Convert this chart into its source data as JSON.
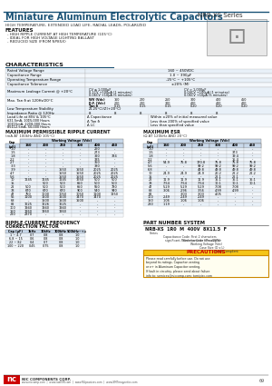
{
  "title": "Miniature Aluminum Electrolytic Capacitors",
  "series": "NRB-XS Series",
  "subtitle": "HIGH TEMPERATURE, EXTENDED LOAD LIFE, RADIAL LEADS, POLARIZED",
  "features_title": "FEATURES",
  "features": [
    "HIGH RIPPLE CURRENT AT HIGH TEMPERATURE (105°C)",
    "IDEAL FOR HIGH VOLTAGE LIGHTING BALLAST",
    "REDUCED SIZE (FROM NP85X)"
  ],
  "char_title": "CHARACTERISTICS",
  "ripple_title": "MAXIMUM PERMISSIBLE RIPPLE CURRENT",
  "ripple_subtitle": "(mA AT 100kHz AND 105°C)",
  "esr_title": "MAXIMUM ESR",
  "esr_subtitle": "(Ω AT 120kHz AND 20°C)",
  "ripple_data": [
    [
      "1.0",
      "-",
      "-",
      "-",
      "-",
      "260",
      "-"
    ],
    [
      "1.5",
      "-",
      "-",
      "-",
      "-",
      "273",
      "-"
    ],
    [
      "1.8",
      "-",
      "-",
      "-",
      "-",
      "320",
      "334"
    ],
    [
      "2.2",
      "-",
      "-",
      "-",
      "-",
      "335",
      "-"
    ],
    [
      "2.7",
      "-",
      "-",
      "-",
      "-",
      "350",
      "-"
    ],
    [
      "3.3",
      "-",
      "-",
      "-",
      "-",
      "380",
      "-"
    ],
    [
      "3.9",
      "-",
      "-",
      "1550",
      "1550",
      "2025",
      "2025"
    ],
    [
      "4.7",
      "-",
      "-",
      "1550",
      "1550",
      "2025",
      "2025"
    ],
    [
      "5.6",
      "-",
      "-",
      "1550",
      "1550",
      "2025",
      "2025"
    ],
    [
      "10",
      "1245",
      "1245",
      "1245",
      "1650",
      "500",
      "500"
    ],
    [
      "15",
      "-",
      "500",
      "500",
      "650",
      "500",
      "500"
    ],
    [
      "22",
      "500",
      "500",
      "500",
      "650",
      "550",
      "780"
    ],
    [
      "33",
      "670",
      "670",
      "670",
      "900",
      "540",
      "940"
    ],
    [
      "47",
      "750",
      "1000",
      "1050",
      "1050",
      "1100",
      "1250"
    ],
    [
      "56",
      "1100",
      "1500",
      "1500",
      "1470",
      "1470",
      "-"
    ],
    [
      "68",
      "-",
      "1500",
      "1500",
      "1500",
      "-",
      "-"
    ],
    [
      "82",
      "1625",
      "1626",
      "1625",
      "-",
      "-",
      "-"
    ],
    [
      "100",
      "1940",
      "1940",
      "1940",
      "-",
      "-",
      "-"
    ],
    [
      "150",
      "1960",
      "1960",
      "1960",
      "-",
      "-",
      "-"
    ],
    [
      "220",
      "2370",
      "-",
      "-",
      "-",
      "-",
      "-"
    ]
  ],
  "esr_data": [
    [
      "1.0",
      "-",
      "-",
      "-",
      "-",
      "-",
      "-"
    ],
    [
      "1.5",
      "-",
      "-",
      "-",
      "-",
      "373",
      "-"
    ],
    [
      "1.8",
      "-",
      "-",
      "-",
      "-",
      "19.4",
      "-"
    ],
    [
      "2.2",
      "-",
      "-",
      "-",
      "-",
      "15.4",
      "-"
    ],
    [
      "4.7",
      "54.9",
      "75.8",
      "170.8",
      "75.8",
      "75.8",
      "75.8"
    ],
    [
      "5.6",
      "-",
      "-",
      "99.2",
      "99.2",
      "99.2",
      "99.2"
    ],
    [
      "6.8",
      "-",
      "-",
      "49.8",
      "49.8",
      "49.8",
      "49.8"
    ],
    [
      "10",
      "24.9",
      "24.9",
      "24.9",
      "20.2",
      "22.2",
      "22.2"
    ],
    [
      "15",
      "-",
      "-",
      "-",
      "22.1",
      "22.1",
      "-"
    ],
    [
      "22",
      "11.9",
      "11.9",
      "11.9",
      "15.1",
      "15.1",
      "15.1"
    ],
    [
      "33",
      "7.54",
      "7.54",
      "7.54",
      "10.1",
      "10.1",
      "10.1"
    ],
    [
      "47",
      "5.29",
      "5.29",
      "5.29",
      "7.08",
      "7.08",
      "-"
    ],
    [
      "68",
      "3.06",
      "2.96",
      "3.56",
      "4.99",
      "4.99",
      "-"
    ],
    [
      "82",
      "-",
      "3.03",
      "3.03",
      "4.05",
      "-",
      "-"
    ],
    [
      "100",
      "2.49",
      "2.49",
      "2.49",
      "-",
      "-",
      "-"
    ],
    [
      "150",
      "1.06",
      "1.06",
      "1.06",
      "-",
      "-",
      "-"
    ],
    [
      "220",
      "1.19",
      "-",
      "-",
      "-",
      "-",
      "-"
    ]
  ],
  "part_title": "PART NUMBER SYSTEM",
  "part_example": "NRB-XS 1R0 M 400V 8X11.5 F",
  "ripple_freq_title": "RIPPLE CURRENT FREQUENCY\nCORRECTION FACTOR",
  "ripple_freq_headers": [
    "Cap (μF)",
    "1kHz",
    "10kHz",
    "100kHz",
    "500kHz~+∞"
  ],
  "ripple_freq_data": [
    [
      "1 ~ 4.7",
      "0.7",
      "0.8",
      "0.8",
      "1.0"
    ],
    [
      "6.8 ~ 15",
      "0.6",
      "0.8",
      "0.8",
      "1.0"
    ],
    [
      "22 ~ 82",
      "0.4",
      "0.7",
      "0.8",
      "1.0"
    ],
    [
      "100 ~ 220",
      "0.45",
      "0.75",
      "0.8",
      "1.0"
    ]
  ],
  "caution_title": "PRECAUTIONS",
  "header_blue": "#1a5276",
  "bg_color": "#ffffff"
}
